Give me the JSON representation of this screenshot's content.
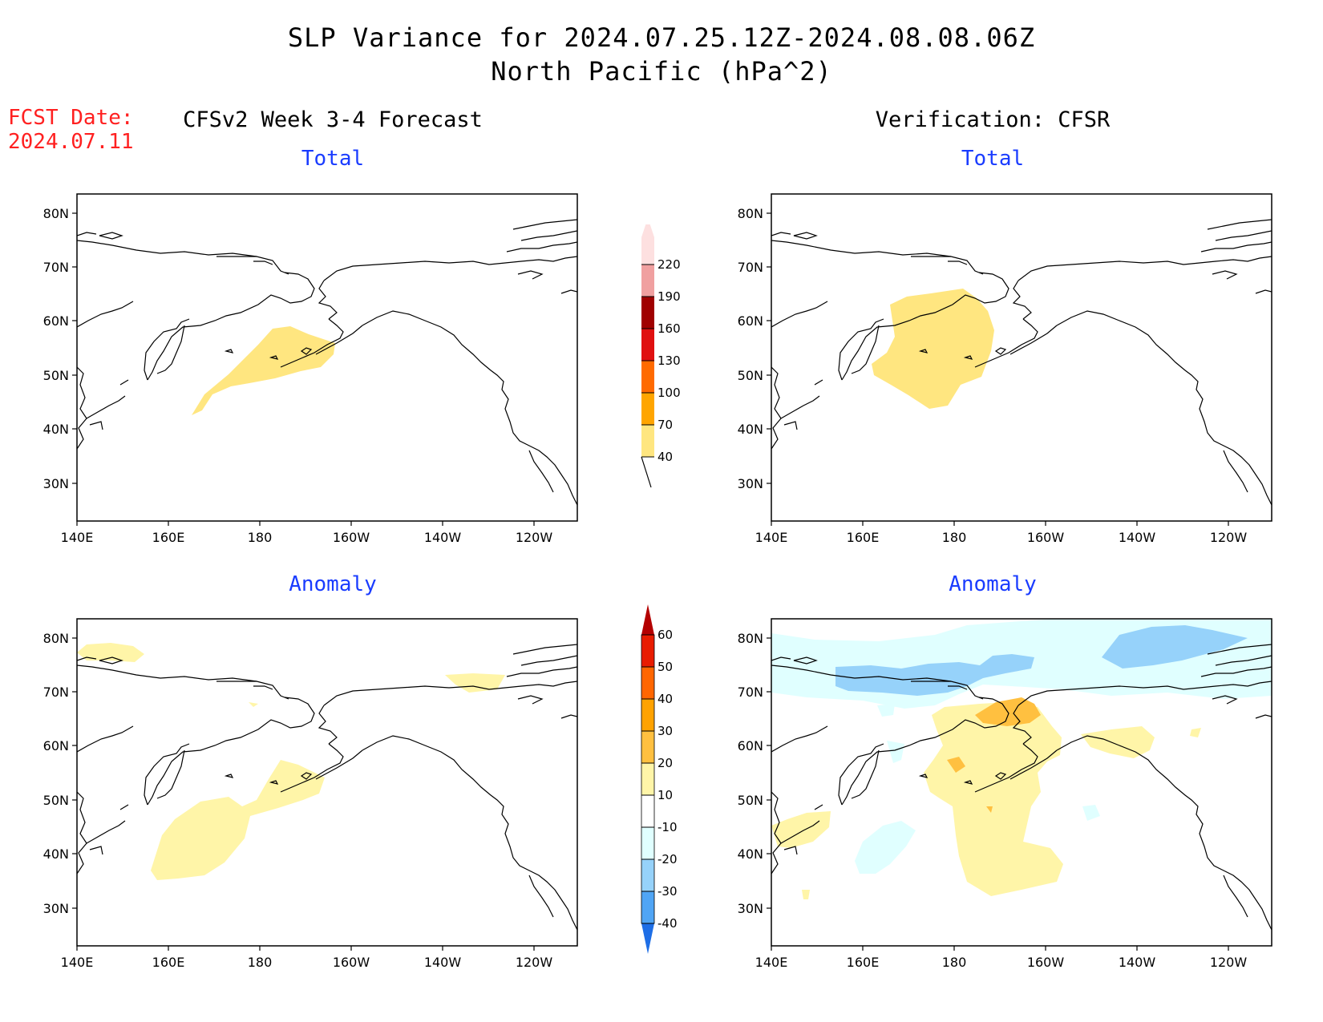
{
  "header": {
    "title_line1": "SLP Variance for 2024.07.25.12Z-2024.08.08.06Z",
    "title_line2": "North Pacific (hPa^2)",
    "fcst_label": "FCST Date:",
    "fcst_date": "2024.07.11"
  },
  "columns": {
    "left_title": "CFSv2 Week 3-4 Forecast",
    "right_title": "Verification: CFSR"
  },
  "panels": {
    "forecast_total_title": "Total",
    "verif_total_title": "Total",
    "forecast_anom_title": "Anomaly",
    "verif_anom_title": "Anomaly"
  },
  "axes": {
    "lat_labels": [
      "80N",
      "70N",
      "60N",
      "50N",
      "40N",
      "30N"
    ],
    "lon_labels": [
      "140E",
      "160E",
      "180",
      "160W",
      "140W",
      "120W"
    ]
  },
  "colorbars": {
    "total": {
      "levels": [
        "40",
        "70",
        "100",
        "130",
        "160",
        "190",
        "220"
      ],
      "colors": [
        "#ffe680",
        "#ffa500",
        "#ff6a00",
        "#e01010",
        "#a00000",
        "#f0a0a0",
        "#fde0e0"
      ]
    },
    "anomaly": {
      "levels": [
        "60",
        "50",
        "40",
        "30",
        "20",
        "10",
        "-10",
        "-20",
        "-30",
        "-40"
      ],
      "colors_top_to_bottom": [
        "#b40000",
        "#e81c00",
        "#ff6600",
        "#ffa200",
        "#ffc040",
        "#fff5a8",
        "#ffffff",
        "#e0ffff",
        "#96d2fa",
        "#50a5f5",
        "#1e6ee6"
      ]
    }
  },
  "legend": {
    "total_colors": {
      "c40": "#ffe680"
    },
    "anomaly_colors": {
      "pos10": "#fff5a8",
      "pos20": "#ffc040",
      "pos30": "#ffa200",
      "neg10": "#e0ffff",
      "neg20": "#96d2fa"
    }
  }
}
